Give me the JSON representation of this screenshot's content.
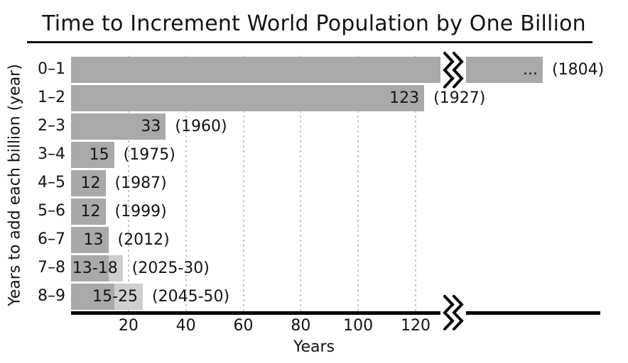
{
  "title": "Time to Increment World Population by One Billion",
  "chart_data": {
    "type": "bar",
    "orientation": "horizontal",
    "title": "Time to Increment World Population by One Billion",
    "xlabel": "Years",
    "ylabel": "Years to add each billion (year)",
    "x_ticks": [
      20,
      40,
      60,
      80,
      100,
      120
    ],
    "xlim": [
      0,
      164.3
    ],
    "grid": "vertical-dashed",
    "legend": "none",
    "bars": [
      {
        "category": "0–1",
        "value_label": "...",
        "year_label": "(1804)",
        "solid_years": null,
        "display_years": 164.3,
        "axis_break": true,
        "break_position_years": 128.7
      },
      {
        "category": "1–2",
        "value_label": "123",
        "year_label": "(1927)",
        "solid_years": 123
      },
      {
        "category": "2–3",
        "value_label": "33",
        "year_label": "(1960)",
        "solid_years": 33
      },
      {
        "category": "3–4",
        "value_label": "15",
        "year_label": "(1975)",
        "solid_years": 15
      },
      {
        "category": "4–5",
        "value_label": "12",
        "year_label": "(1987)",
        "solid_years": 12
      },
      {
        "category": "5–6",
        "value_label": "12",
        "year_label": "(1999)",
        "solid_years": 12
      },
      {
        "category": "6–7",
        "value_label": "13",
        "year_label": "(2012)",
        "solid_years": 13
      },
      {
        "category": "7–8",
        "value_label": "13-18",
        "year_label": "(2025-30)",
        "solid_years": 13,
        "projected_years": 18
      },
      {
        "category": "8–9",
        "value_label": "15-25",
        "year_label": "(2045-50)",
        "solid_years": 15,
        "projected_years": 25
      }
    ],
    "colors": {
      "bar": "#a9a9a9",
      "projected": "#cecece",
      "grid": "#c8c8c8",
      "axis": "#000000",
      "text": "#141414"
    }
  }
}
